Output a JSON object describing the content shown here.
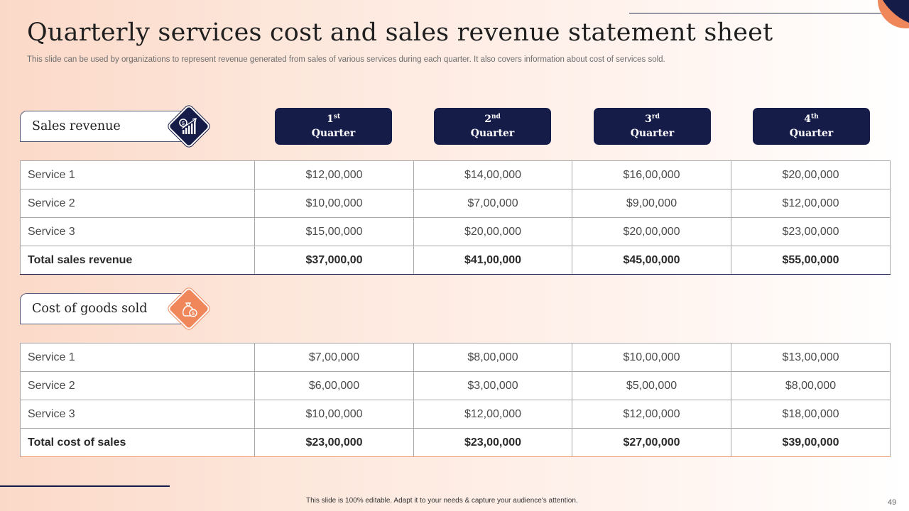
{
  "header": {
    "title": "Quarterly services cost and sales revenue statement sheet",
    "subtitle": "This slide can be used by organizations to represent revenue generated from sales of various services during each quarter. It also covers information about cost of services sold."
  },
  "quarters": [
    {
      "num": "1",
      "sup": "st",
      "label": "Quarter"
    },
    {
      "num": "2",
      "sup": "nd",
      "label": "Quarter"
    },
    {
      "num": "3",
      "sup": "rd",
      "label": "Quarter"
    },
    {
      "num": "4",
      "sup": "th",
      "label": "Quarter"
    }
  ],
  "sales": {
    "label": "Sales revenue",
    "icon": "growth-chart-money-icon",
    "rows": [
      {
        "name": "Service 1",
        "values": [
          "$12,00,000",
          "$14,00,000",
          "$16,00,000",
          "$20,00,000"
        ]
      },
      {
        "name": "Service 2",
        "values": [
          "$10,00,000",
          "$7,00,000",
          "$9,00,000",
          "$12,00,000"
        ]
      },
      {
        "name": "Service 3",
        "values": [
          "$15,00,000",
          "$20,00,000",
          "$20,00,000",
          "$23,00,000"
        ]
      },
      {
        "name": "Total sales revenue",
        "values": [
          "$37,000,00",
          "$41,00,000",
          "$45,00,000",
          "$55,00,000"
        ]
      }
    ]
  },
  "cost": {
    "label": "Cost of goods sold",
    "icon": "money-bag-icon",
    "rows": [
      {
        "name": "Service 1",
        "values": [
          "$7,00,000",
          "$8,00,000",
          "$10,00,000",
          "$13,00,000"
        ]
      },
      {
        "name": "Service 2",
        "values": [
          "$6,00,000",
          "$3,00,000",
          "$5,00,000",
          "$8,00,000"
        ]
      },
      {
        "name": "Service 3",
        "values": [
          "$10,00,000",
          "$12,00,000",
          "$12,00,000",
          "$18,00,000"
        ]
      },
      {
        "name": "Total cost of sales",
        "values": [
          "$23,00,000",
          "$23,00,000",
          "$27,00,000",
          "$39,00,000"
        ]
      }
    ]
  },
  "footer": {
    "note": "This slide is 100% editable. Adapt it to your needs & capture your audience's attention.",
    "page_number": "49"
  },
  "colors": {
    "navy": "#161c48",
    "orange": "#f0875a",
    "peach": "#fbd9c8"
  }
}
